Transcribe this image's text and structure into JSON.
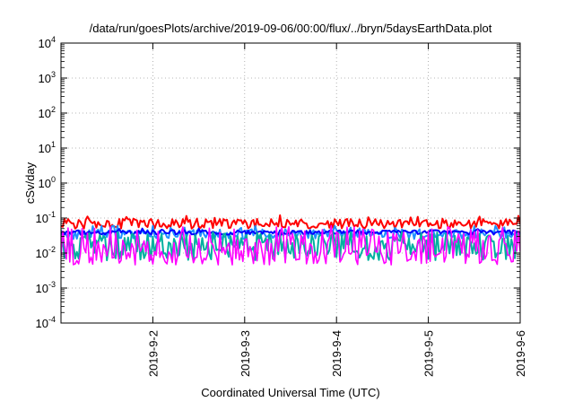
{
  "chart_data": {
    "type": "line",
    "title": "/data/run/goesPlots/archive/2019-09-06/00:00/flux/../bryn/5daysEarthData.plot",
    "xlabel": "Coordinated Universal Time (UTC)",
    "ylabel": "cSv/day",
    "yscale": "log",
    "ylim": [
      0.0001,
      10000
    ],
    "xlim": [
      "2019-09-01",
      "2019-09-06"
    ],
    "y_tick_labels": [
      {
        "value": 0.0001,
        "base": "10",
        "exp": "-4"
      },
      {
        "value": 0.001,
        "base": "10",
        "exp": "-3"
      },
      {
        "value": 0.01,
        "base": "10",
        "exp": "-2"
      },
      {
        "value": 0.1,
        "base": "10",
        "exp": "-1"
      },
      {
        "value": 1,
        "base": "10",
        "exp": "0"
      },
      {
        "value": 10,
        "base": "10",
        "exp": "1"
      },
      {
        "value": 100,
        "base": "10",
        "exp": "2"
      },
      {
        "value": 1000,
        "base": "10",
        "exp": "3"
      },
      {
        "value": 10000,
        "base": "10",
        "exp": "4"
      }
    ],
    "x_tick_labels": [
      "2019-9-2",
      "2019-9-3",
      "2019-9-4",
      "2019-9-5",
      "2019-9-6"
    ],
    "grid": true,
    "series": [
      {
        "color": "#ff0000",
        "approx_range": [
          0.04,
          0.12
        ]
      },
      {
        "color": "#1e90ff",
        "approx_range": [
          0.02,
          0.06
        ]
      },
      {
        "color": "#0000ff",
        "approx_range": [
          0.03,
          0.05
        ]
      },
      {
        "color": "#00b0a0",
        "approx_range": [
          0.006,
          0.04
        ]
      },
      {
        "color": "#ff00ff",
        "approx_range": [
          0.004,
          0.06
        ]
      }
    ]
  }
}
